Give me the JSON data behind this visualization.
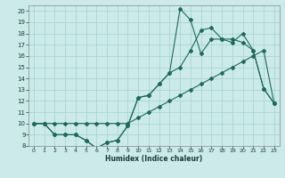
{
  "xlabel": "Humidex (Indice chaleur)",
  "bg_color": "#cceaea",
  "grid_color": "#aad4d4",
  "line_color": "#1a6b5a",
  "line1_y": [
    10,
    10,
    9,
    9,
    9,
    8.5,
    7.8,
    8.3,
    8.5,
    9.8,
    12.3,
    12.5,
    13.5,
    14.5,
    15.0,
    16.5,
    18.3,
    18.5,
    17.5,
    17.5,
    17.2,
    16.5,
    13.1,
    11.8
  ],
  "line2_y": [
    10,
    10,
    9,
    9,
    9,
    8.5,
    7.8,
    8.3,
    8.5,
    9.8,
    12.3,
    12.5,
    13.5,
    14.5,
    20.2,
    19.2,
    16.2,
    17.5,
    17.5,
    17.2,
    18.0,
    16.5,
    13.1,
    11.8
  ],
  "line3_y": [
    10,
    10,
    10,
    10,
    10,
    10,
    10,
    10,
    10,
    10,
    10.5,
    11,
    11.5,
    12,
    12.5,
    13,
    13.5,
    14,
    14.5,
    15,
    15.5,
    16,
    16.5,
    11.8
  ],
  "xlim": [
    -0.5,
    23.5
  ],
  "ylim": [
    8,
    20.5
  ],
  "yticks": [
    8,
    9,
    10,
    11,
    12,
    13,
    14,
    15,
    16,
    17,
    18,
    19,
    20
  ],
  "xticks": [
    0,
    1,
    2,
    3,
    4,
    5,
    6,
    7,
    8,
    9,
    10,
    11,
    12,
    13,
    14,
    15,
    16,
    17,
    18,
    19,
    20,
    21,
    22,
    23
  ]
}
